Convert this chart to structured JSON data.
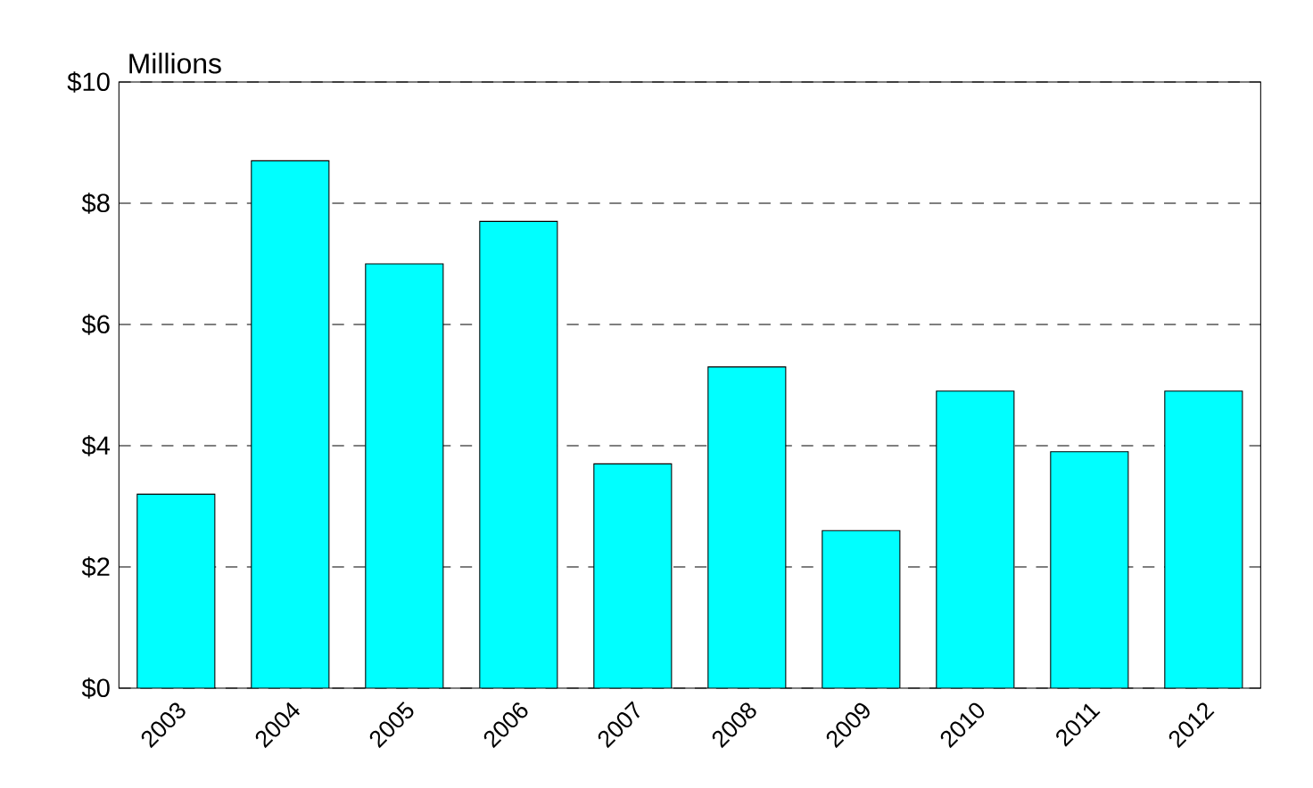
{
  "chart_data": {
    "type": "bar",
    "ylabel": "Millions",
    "categories": [
      "2003",
      "2004",
      "2005",
      "2006",
      "2007",
      "2008",
      "2009",
      "2010",
      "2011",
      "2012"
    ],
    "values": [
      3.2,
      8.7,
      7.0,
      7.7,
      3.7,
      5.3,
      2.6,
      4.9,
      3.9,
      4.9
    ],
    "color": "#00ffff",
    "ylim": [
      0,
      10
    ],
    "yticks": [
      {
        "value": 0,
        "label": "$0"
      },
      {
        "value": 2,
        "label": "$2"
      },
      {
        "value": 4,
        "label": "$4"
      },
      {
        "value": 6,
        "label": "$6"
      },
      {
        "value": 8,
        "label": "$8"
      },
      {
        "value": 10,
        "label": "$10"
      }
    ],
    "grid": "y"
  }
}
